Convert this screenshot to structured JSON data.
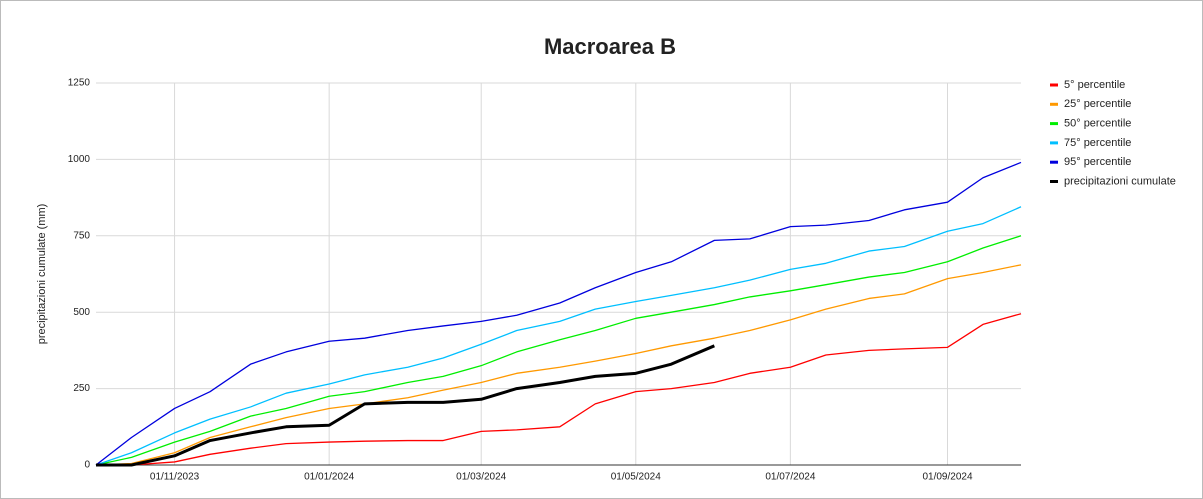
{
  "chart_data": {
    "type": "line",
    "title": "Macroarea B",
    "y_label": "precipitazioni cumulate (mm)",
    "x": [
      "2023-10-01",
      "2023-10-15",
      "2023-11-01",
      "2023-11-15",
      "2023-12-01",
      "2023-12-15",
      "2024-01-01",
      "2024-01-15",
      "2024-02-01",
      "2024-02-15",
      "2024-03-01",
      "2024-03-15",
      "2024-04-01",
      "2024-04-15",
      "2024-05-01",
      "2024-05-15",
      "2024-06-01",
      "2024-06-15",
      "2024-07-01",
      "2024-07-15",
      "2024-08-01",
      "2024-08-15",
      "2024-09-01",
      "2024-09-15",
      "2024-09-30"
    ],
    "series": [
      {
        "name": "5° percentile",
        "color": "#ff0000",
        "width": 1.3,
        "values": [
          0,
          0,
          10,
          35,
          55,
          70,
          75,
          78,
          80,
          80,
          110,
          115,
          125,
          200,
          240,
          250,
          270,
          300,
          320,
          360,
          375,
          380,
          385,
          460,
          495
        ]
      },
      {
        "name": "25° percentile",
        "color": "#ff9900",
        "width": 1.3,
        "values": [
          0,
          5,
          40,
          90,
          125,
          155,
          185,
          200,
          220,
          245,
          270,
          300,
          320,
          340,
          365,
          390,
          415,
          440,
          475,
          510,
          545,
          560,
          610,
          630,
          655
        ]
      },
      {
        "name": "50° percentile",
        "color": "#00ee00",
        "width": 1.3,
        "values": [
          0,
          25,
          75,
          110,
          160,
          185,
          225,
          240,
          270,
          290,
          325,
          370,
          410,
          440,
          480,
          500,
          525,
          550,
          570,
          590,
          615,
          630,
          665,
          710,
          750
        ]
      },
      {
        "name": "75° percentile",
        "color": "#00bfff",
        "width": 1.3,
        "values": [
          0,
          40,
          105,
          150,
          190,
          235,
          265,
          295,
          320,
          350,
          395,
          440,
          470,
          510,
          535,
          555,
          580,
          605,
          640,
          660,
          700,
          715,
          765,
          790,
          845
        ]
      },
      {
        "name": "95° percentile",
        "color": "#0000dd",
        "width": 1.3,
        "values": [
          0,
          90,
          185,
          240,
          330,
          370,
          405,
          415,
          440,
          455,
          470,
          490,
          530,
          580,
          630,
          665,
          735,
          740,
          780,
          785,
          800,
          835,
          860,
          940,
          990
        ]
      },
      {
        "name": "precipitazioni cumulate",
        "color": "#000000",
        "width": 3,
        "values": [
          0,
          0,
          30,
          80,
          105,
          125,
          130,
          200,
          205,
          205,
          215,
          250,
          270,
          290,
          300,
          330,
          390,
          null,
          null,
          null,
          null,
          null,
          null,
          null,
          null
        ]
      }
    ],
    "xlim": [
      "2023-10-01",
      "2024-09-30"
    ],
    "xticks": [
      {
        "value": "2023-11-01",
        "label": "01/11/2023"
      },
      {
        "value": "2024-01-01",
        "label": "01/01/2024"
      },
      {
        "value": "2024-03-01",
        "label": "01/03/2024"
      },
      {
        "value": "2024-05-01",
        "label": "01/05/2024"
      },
      {
        "value": "2024-07-01",
        "label": "01/07/2024"
      },
      {
        "value": "2024-09-01",
        "label": "01/09/2024"
      }
    ],
    "ylim": [
      0,
      1250
    ],
    "yticks": [
      0,
      250,
      500,
      750,
      1000,
      1250
    ],
    "grid": true,
    "legend": "right"
  }
}
